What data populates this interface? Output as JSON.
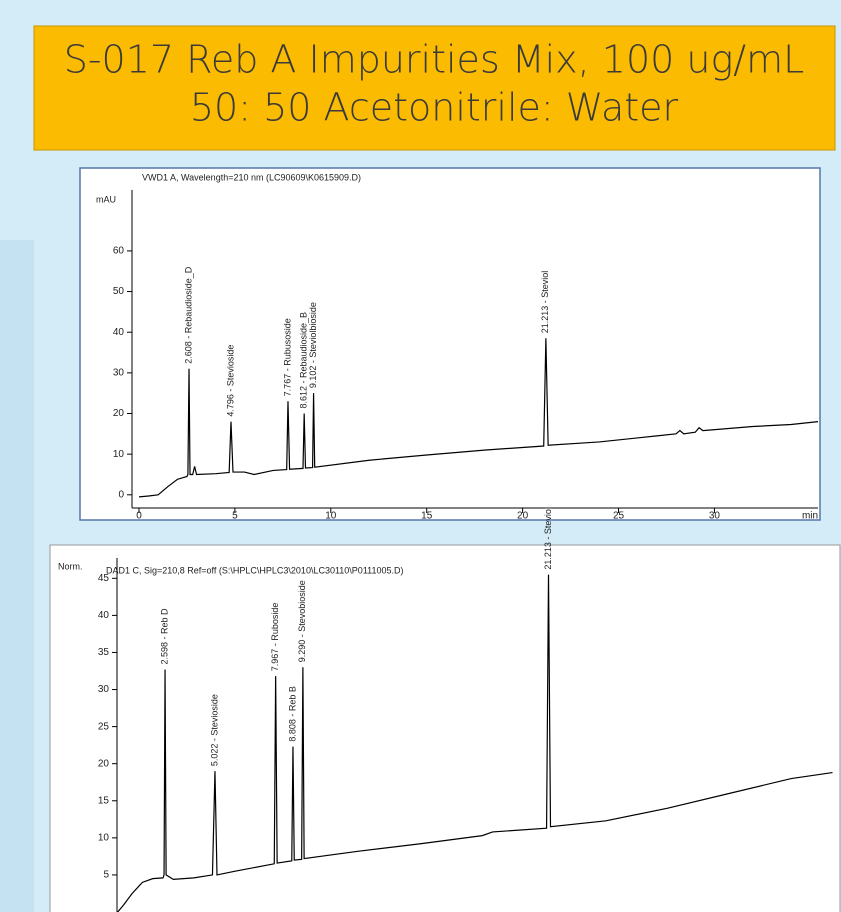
{
  "header": {
    "title_lines": [
      "S-017 Reb A Impurities Mix, 100 ug/mL",
      "50: 50 Acetonitrile: Water"
    ]
  },
  "chart_data": [
    {
      "type": "line",
      "title": "VWD1 A, Wavelength=210 nm (LC90609\\K0615909.D)",
      "ylabel": "mAU",
      "xlabel": "min",
      "color": "#000000",
      "xlim": [
        0,
        35.4
      ],
      "ylim": [
        -3,
        74
      ],
      "xticks": [
        0,
        5,
        10,
        15,
        20,
        25,
        30
      ],
      "yticks": [
        0,
        10,
        20,
        30,
        40,
        50,
        60
      ],
      "x": [
        0,
        0.5,
        1,
        1.5,
        2,
        2.5,
        2.55,
        2.608,
        2.66,
        2.8,
        2.9,
        3.0,
        4.0,
        4.7,
        4.796,
        4.9,
        5.5,
        6,
        7,
        7.7,
        7.767,
        7.85,
        8.55,
        8.612,
        8.68,
        9.05,
        9.102,
        9.16,
        12,
        15,
        18,
        21.1,
        21.213,
        21.33,
        24,
        27,
        28,
        28.2,
        28.4,
        29,
        29.2,
        29.4,
        32,
        34,
        35.4
      ],
      "values": [
        -0.5,
        -0.3,
        0,
        2,
        3.8,
        4.5,
        5,
        31,
        5,
        5,
        7,
        5,
        5.2,
        5.5,
        18,
        5.6,
        5.6,
        5,
        6,
        6.2,
        23,
        6.3,
        6.5,
        20,
        6.6,
        6.7,
        25,
        6.8,
        8.5,
        9.8,
        11,
        12,
        38.5,
        12.2,
        13,
        14.5,
        15,
        15.8,
        15,
        15.4,
        16.5,
        15.8,
        16.8,
        17.3,
        18
      ],
      "annotations": [
        {
          "text": "2.608 - Rebaudioside_D",
          "x": 2.608
        },
        {
          "text": "4.796 - Stevioside",
          "x": 4.796
        },
        {
          "text": "7.767 - Rubusoside",
          "x": 7.767
        },
        {
          "text": "8.612 - Rebaudioside_B",
          "x": 8.612
        },
        {
          "text": "9.102 - Steviolbioside",
          "x": 9.102
        },
        {
          "text": "21.213 - Steviol",
          "x": 21.213
        }
      ]
    },
    {
      "type": "line",
      "title": "DAD1 C, Sig=210,8 Ref=off (S:\\HPLC\\HPLC3\\2010\\LC30110\\P0111005.D)",
      "ylabel": "Norm.",
      "color": "#000000",
      "xlim": [
        0.3,
        35
      ],
      "ylim": [
        0,
        47.2
      ],
      "yticks": [
        5,
        10,
        15,
        20,
        25,
        30,
        35,
        40,
        45
      ],
      "x": [
        0.3,
        0.6,
        1,
        1.5,
        2,
        2.5,
        2.55,
        2.598,
        2.65,
        3,
        4,
        4.9,
        5.022,
        5.12,
        6,
        7.9,
        7.967,
        8.04,
        8.75,
        8.808,
        8.87,
        9.23,
        9.29,
        9.35,
        12,
        15,
        18,
        18.5,
        21.12,
        21.213,
        21.31,
        24,
        27,
        30,
        33,
        35
      ],
      "values": [
        0,
        1,
        2.5,
        4,
        4.5,
        4.6,
        5,
        32.7,
        5,
        4.4,
        4.6,
        5,
        19,
        5,
        5.5,
        6.5,
        31.8,
        6.6,
        6.9,
        22.3,
        7,
        7.1,
        33,
        7.2,
        8.2,
        9.2,
        10.3,
        10.8,
        11.3,
        45.5,
        11.5,
        12.3,
        14,
        16,
        18,
        18.8
      ],
      "annotations": [
        {
          "text": "2.598 -  Reb D",
          "x": 2.598
        },
        {
          "text": "5.022 -  Stevioside",
          "x": 5.022
        },
        {
          "text": "7.967 -  Ruboside",
          "x": 7.967
        },
        {
          "text": "8.808 -  Reb B",
          "x": 8.808
        },
        {
          "text": "9.290 -  Stevobioside",
          "x": 9.29
        },
        {
          "text": "21.213 -  Steviol",
          "x": 21.213
        }
      ]
    }
  ]
}
